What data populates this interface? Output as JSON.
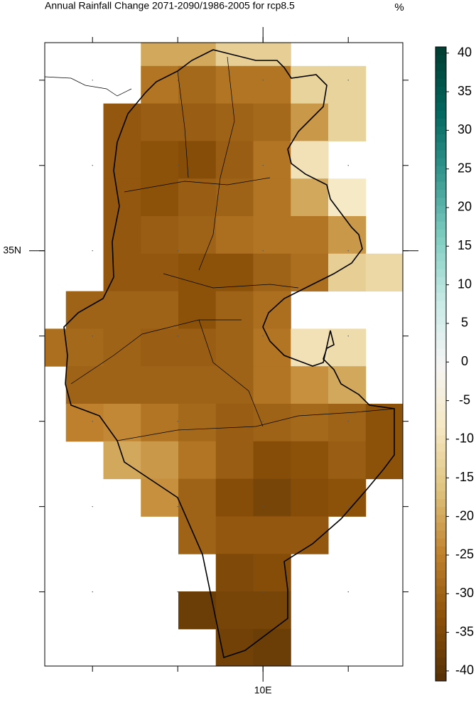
{
  "chart_data": {
    "type": "heatmap",
    "title": "Annual Rainfall Change 2071-2090/1986-2005 for rcp8.5",
    "unit": "%",
    "xlim": [
      7.44,
      11.64
    ],
    "ylim": [
      30.13,
      37.44
    ],
    "xticks": [
      {
        "value": 10,
        "label": "10E"
      }
    ],
    "yticks": [
      {
        "value": 35,
        "label": "35N"
      }
    ],
    "clim": [
      -41.3,
      40.8
    ],
    "cticks": [
      40,
      35,
      30,
      25,
      20,
      15,
      10,
      5,
      0,
      -5,
      -10,
      -15,
      -20,
      -25,
      -30,
      -35,
      -40
    ],
    "colormap": [
      "#543005",
      "#8c510a",
      "#bf812d",
      "#dfc27d",
      "#f6e8c3",
      "#f5f5f5",
      "#c7eae5",
      "#80cdc1",
      "#35978f",
      "#01665e",
      "#003c30"
    ],
    "values": [
      [
        null,
        null,
        null,
        -20,
        -20,
        -14,
        -14,
        null,
        null,
        null
      ],
      [
        null,
        null,
        null,
        -27,
        -29,
        -27,
        -27,
        -13,
        -13,
        null
      ],
      [
        null,
        null,
        -32,
        -31,
        -31,
        -30,
        -29,
        -22,
        -13,
        null
      ],
      [
        null,
        null,
        -32,
        -33,
        -34,
        -31,
        -27,
        -10,
        null,
        null
      ],
      [
        null,
        null,
        -32,
        -33,
        -31,
        -30,
        -27,
        -20,
        -8,
        null
      ],
      [
        null,
        null,
        -32,
        -31,
        -30,
        -28,
        -27,
        -27,
        -22,
        null
      ],
      [
        null,
        null,
        -32,
        -32,
        -33,
        -33,
        -30,
        -28,
        -14,
        -12
      ],
      [
        null,
        -30,
        -30,
        -30,
        -33,
        -30,
        -28,
        null,
        null,
        null
      ],
      [
        -28,
        -29,
        -30,
        -31,
        -31,
        -30,
        -27,
        -10,
        -11,
        null
      ],
      [
        null,
        -30,
        -30,
        -30,
        -30,
        -30,
        -27,
        -23,
        -20,
        null
      ],
      [
        null,
        -25,
        -24,
        -27,
        -29,
        -31,
        -30,
        -29,
        -30,
        -33
      ],
      [
        null,
        null,
        -20,
        -22,
        -27,
        -31,
        -34,
        -33,
        -31,
        -33
      ],
      [
        null,
        null,
        null,
        -23,
        -30,
        -34,
        -36,
        -34,
        -33,
        null
      ],
      [
        null,
        null,
        null,
        null,
        -30,
        -32,
        -32,
        -32,
        null,
        null
      ],
      [
        null,
        null,
        null,
        null,
        null,
        -35,
        -34,
        null,
        null,
        null
      ],
      [
        null,
        null,
        null,
        null,
        -38,
        -36,
        -36,
        null,
        null,
        null
      ],
      [
        null,
        null,
        null,
        null,
        null,
        -37,
        -38,
        null,
        null,
        null
      ]
    ]
  }
}
